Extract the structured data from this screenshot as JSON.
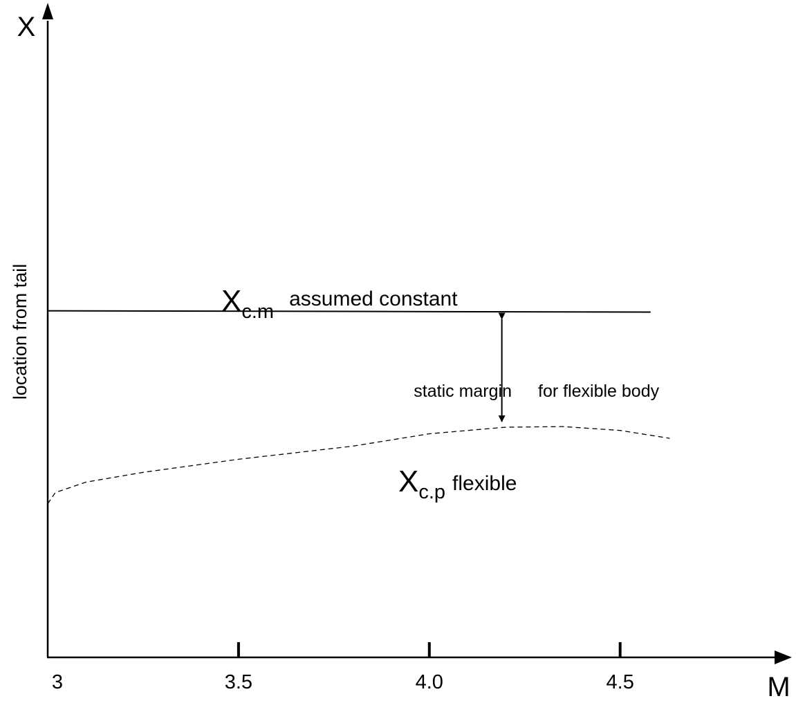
{
  "chart_data": {
    "type": "line",
    "xlabel": "M",
    "ylabel_symbol": "X",
    "ylabel": "location from tail",
    "x_ticks": [
      "3",
      "3.5",
      "4.0",
      "4.5"
    ],
    "xlim": [
      3,
      4.95
    ],
    "ylim": [
      0,
      1
    ],
    "series": [
      {
        "label_main": "X",
        "label_sub": "c.m",
        "label_text": "assumed constant",
        "style": "solid",
        "x": [
          3.0,
          4.58
        ],
        "y": [
          0.53,
          0.528
        ]
      },
      {
        "label_main": "X",
        "label_sub": "c.p",
        "label_text": "flexible",
        "style": "dashed",
        "x": [
          3.0,
          3.02,
          3.1,
          3.25,
          3.5,
          3.8,
          4.0,
          4.2,
          4.35,
          4.5,
          4.63
        ],
        "y": [
          0.235,
          0.252,
          0.268,
          0.283,
          0.303,
          0.323,
          0.342,
          0.352,
          0.353,
          0.347,
          0.335
        ]
      }
    ],
    "annotation": {
      "left_text": "static margin",
      "right_text": "for flexible body",
      "x": 4.19,
      "y_from": 0.528,
      "y_to": 0.35
    }
  }
}
